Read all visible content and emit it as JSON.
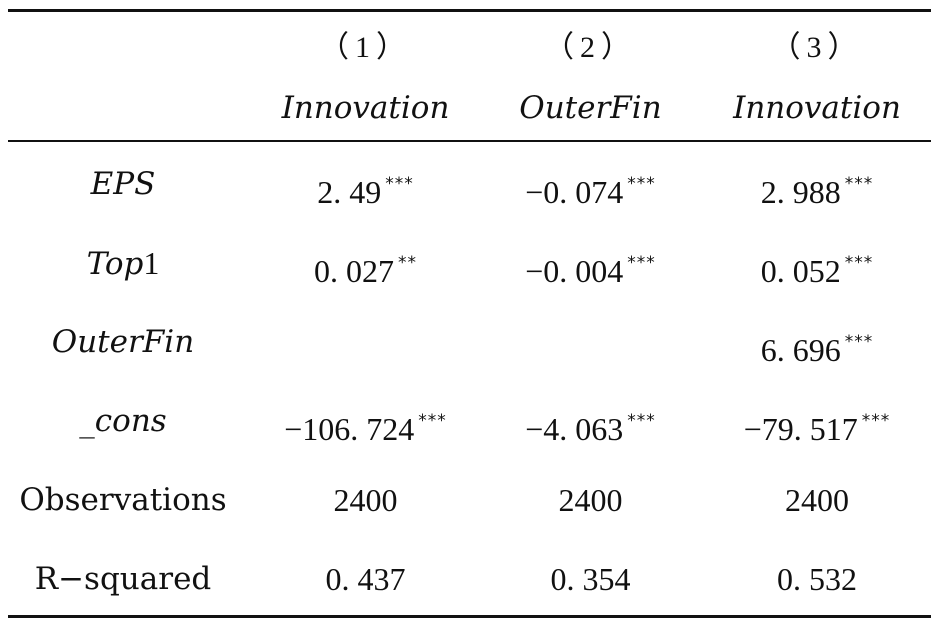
{
  "table": {
    "header": {
      "numbers": [
        "（1）",
        "（2）",
        "（3）"
      ],
      "variables": [
        "Innovation",
        "OuterFin",
        "Innovation"
      ]
    },
    "rows": [
      {
        "label": "EPS",
        "label_italic": true,
        "cells": [
          {
            "value": "2. 49",
            "stars": "***"
          },
          {
            "value": "−0. 074",
            "stars": "***"
          },
          {
            "value": "2. 988",
            "stars": "***"
          }
        ]
      },
      {
        "label_italic_part": "Top",
        "label_plain_part": "1",
        "cells": [
          {
            "value": "0. 027",
            "stars": "**"
          },
          {
            "value": "−0. 004",
            "stars": "***"
          },
          {
            "value": "0. 052",
            "stars": "***"
          }
        ]
      },
      {
        "label": "OuterFin",
        "label_italic": true,
        "cells": [
          {
            "value": "",
            "stars": ""
          },
          {
            "value": "",
            "stars": ""
          },
          {
            "value": "6. 696",
            "stars": "***"
          }
        ]
      },
      {
        "label": "_cons",
        "label_italic": true,
        "cells": [
          {
            "value": "−106. 724",
            "stars": "***"
          },
          {
            "value": "−4. 063",
            "stars": "***"
          },
          {
            "value": "−79. 517",
            "stars": "***"
          }
        ]
      },
      {
        "label": "Observations",
        "label_italic": false,
        "cells": [
          {
            "value": "2400",
            "stars": ""
          },
          {
            "value": "2400",
            "stars": ""
          },
          {
            "value": "2400",
            "stars": ""
          }
        ]
      },
      {
        "label": "R−squared",
        "label_italic": false,
        "cells": [
          {
            "value": "0. 437",
            "stars": ""
          },
          {
            "value": "0. 354",
            "stars": ""
          },
          {
            "value": "0. 532",
            "stars": ""
          }
        ]
      }
    ]
  }
}
